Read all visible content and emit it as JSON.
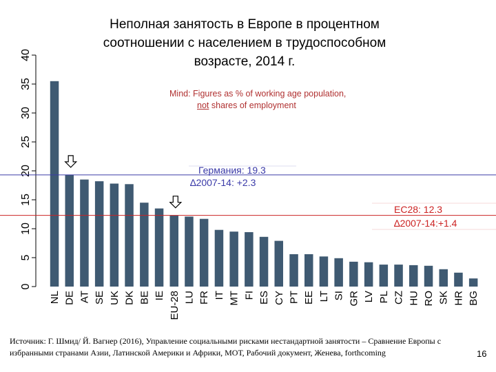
{
  "title": "Неполная занятость в Европе в процентном соотношении с населением в трудоспособном возрасте, 2014 г.",
  "note": {
    "line1": "Mind: Figures as % of working age population,",
    "line2_underlined": "not",
    "line2_rest": " shares of employment"
  },
  "reference_lines": [
    {
      "name": "germany",
      "value": 19.3,
      "color": "#3a3aa8",
      "label1": "Германия: 19.3",
      "label2": "∆2007-14: +2.3"
    },
    {
      "name": "ec28",
      "value": 12.3,
      "color": "#cc2222",
      "label1": "ЕС28: 12.3",
      "label2": "∆2007-14:+1.4"
    }
  ],
  "arrows": [
    {
      "category": "DE",
      "value": 19.3
    },
    {
      "category": "EU-28",
      "value": 12.3
    }
  ],
  "chart_data": {
    "type": "bar",
    "title": "Неполная занятость в Европе в процентном соотношении с населением в трудоспособном возрасте, 2014 г.",
    "categories": [
      "NL",
      "DE",
      "AT",
      "SE",
      "UK",
      "DK",
      "BE",
      "IE",
      "EU-28",
      "LU",
      "FR",
      "IT",
      "MT",
      "FI",
      "ES",
      "CY",
      "PT",
      "EE",
      "LT",
      "SI",
      "GR",
      "LV",
      "PL",
      "CZ",
      "HU",
      "RO",
      "SK",
      "HR",
      "BG"
    ],
    "values": [
      35.5,
      19.3,
      18.5,
      18.2,
      17.8,
      17.7,
      14.5,
      13.5,
      12.3,
      12.1,
      11.7,
      9.8,
      9.5,
      9.4,
      8.6,
      7.9,
      5.6,
      5.6,
      5.2,
      4.9,
      4.3,
      4.2,
      3.8,
      3.8,
      3.7,
      3.6,
      3.0,
      2.4,
      1.4
    ],
    "ylim": [
      0,
      40
    ],
    "yticks": [
      0,
      5,
      10,
      15,
      20,
      25,
      30,
      35,
      40
    ],
    "xlabel": "",
    "ylabel": "",
    "bar_color": "#3f5a72",
    "grid": false
  },
  "source": "Источник: Г. Шмид/ Й. Вагнер (2016), Управление социальными рисками нестандартной занятости – Сравнение Европы с избранными странами Азии, Латинской Америки и Африки, МОТ, Рабочий документ, Женева, forthcoming",
  "page_number": "16"
}
